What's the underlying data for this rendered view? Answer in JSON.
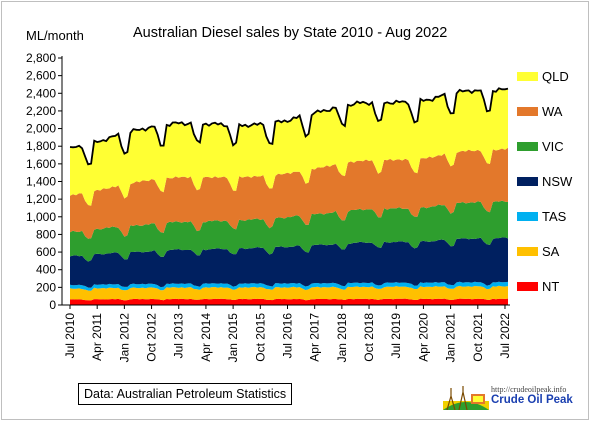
{
  "chart_data": {
    "type": "area",
    "stacked": true,
    "title": "Australian Diesel sales by State 2010 - Aug 2022",
    "ylabel": "ML/month",
    "ylim": [
      0,
      2800
    ],
    "yticks": [
      "0",
      "200",
      "400",
      "600",
      "800",
      "1,000",
      "1,200",
      "1,400",
      "1,600",
      "1,800",
      "2,000",
      "2,200",
      "2,400",
      "2,600",
      "2,800"
    ],
    "xlim": [
      "2010-07",
      "2022-08"
    ],
    "xticks": [
      "Jul 2010",
      "Apr 2011",
      "Jan 2012",
      "Oct 2012",
      "Jul 2013",
      "Apr 2014",
      "Jan 2015",
      "Oct 2015",
      "Jul 2016",
      "Apr 2017",
      "Jan 2018",
      "Oct 2018",
      "Jul 2019",
      "Apr 2020",
      "Jan 2021",
      "Oct 2021",
      "Jul 2022"
    ],
    "legend_position": "right",
    "grid": false,
    "total_line_color": "#000000",
    "series_anchors_note_free": true,
    "anchor_months": [
      "2010-07",
      "2011-01",
      "2011-07",
      "2012-01",
      "2012-07",
      "2013-01",
      "2013-07",
      "2014-01",
      "2014-07",
      "2015-01",
      "2015-07",
      "2016-01",
      "2016-07",
      "2017-01",
      "2017-07",
      "2018-01",
      "2018-07",
      "2019-01",
      "2019-07",
      "2020-01",
      "2020-07",
      "2021-01",
      "2021-07",
      "2022-01",
      "2022-08"
    ],
    "series": [
      {
        "name": "NT",
        "color": "#ff0000",
        "values": [
          60,
          62,
          64,
          64,
          65,
          66,
          66,
          67,
          67,
          67,
          66,
          66,
          65,
          66,
          66,
          67,
          67,
          68,
          68,
          67,
          67,
          68,
          68,
          68,
          68
        ]
      },
      {
        "name": "SA",
        "color": "#ffc000",
        "values": [
          120,
          122,
          124,
          125,
          126,
          127,
          128,
          128,
          129,
          129,
          130,
          130,
          131,
          131,
          132,
          133,
          134,
          135,
          136,
          136,
          137,
          138,
          139,
          139,
          140
        ]
      },
      {
        "name": "TAS",
        "color": "#00b0f0",
        "values": [
          40,
          41,
          41,
          42,
          42,
          42,
          43,
          43,
          43,
          43,
          43,
          44,
          44,
          44,
          44,
          45,
          45,
          45,
          45,
          45,
          46,
          46,
          46,
          46,
          47
        ]
      },
      {
        "name": "NSW",
        "color": "#002060",
        "values": [
          320,
          330,
          345,
          350,
          360,
          370,
          380,
          380,
          385,
          390,
          395,
          400,
          410,
          420,
          430,
          440,
          450,
          455,
          455,
          455,
          465,
          480,
          490,
          490,
          495
        ]
      },
      {
        "name": "VIC",
        "color": "#2e9e2e",
        "values": [
          270,
          275,
          285,
          290,
          300,
          305,
          310,
          310,
          312,
          315,
          318,
          322,
          330,
          340,
          350,
          360,
          370,
          375,
          375,
          375,
          385,
          400,
          405,
          405,
          410
        ]
      },
      {
        "name": "WA",
        "color": "#e3782b",
        "values": [
          410,
          420,
          440,
          470,
          490,
          500,
          500,
          500,
          490,
          480,
          480,
          480,
          490,
          505,
          520,
          540,
          545,
          545,
          545,
          545,
          555,
          570,
          580,
          580,
          590
        ]
      },
      {
        "name": "QLD",
        "color": "#ffff33",
        "values": [
          520,
          530,
          550,
          570,
          580,
          590,
          600,
          600,
          590,
          580,
          575,
          575,
          590,
          610,
          625,
          640,
          645,
          640,
          640,
          640,
          650,
          660,
          670,
          665,
          660
        ]
      }
    ],
    "total_approx": [
      1740,
      1780,
      1850,
      1910,
      1960,
      2000,
      2030,
      2030,
      2020,
      2010,
      2010,
      2020,
      2060,
      2120,
      2170,
      2230,
      2260,
      2260,
      2260,
      2260,
      2310,
      2370,
      2400,
      2390,
      2410
    ]
  },
  "source_note": "Data: Australian Petroleum Statistics",
  "logo": {
    "url": "http://crudeoilpeak.info",
    "name": "Crude Oil Peak"
  }
}
